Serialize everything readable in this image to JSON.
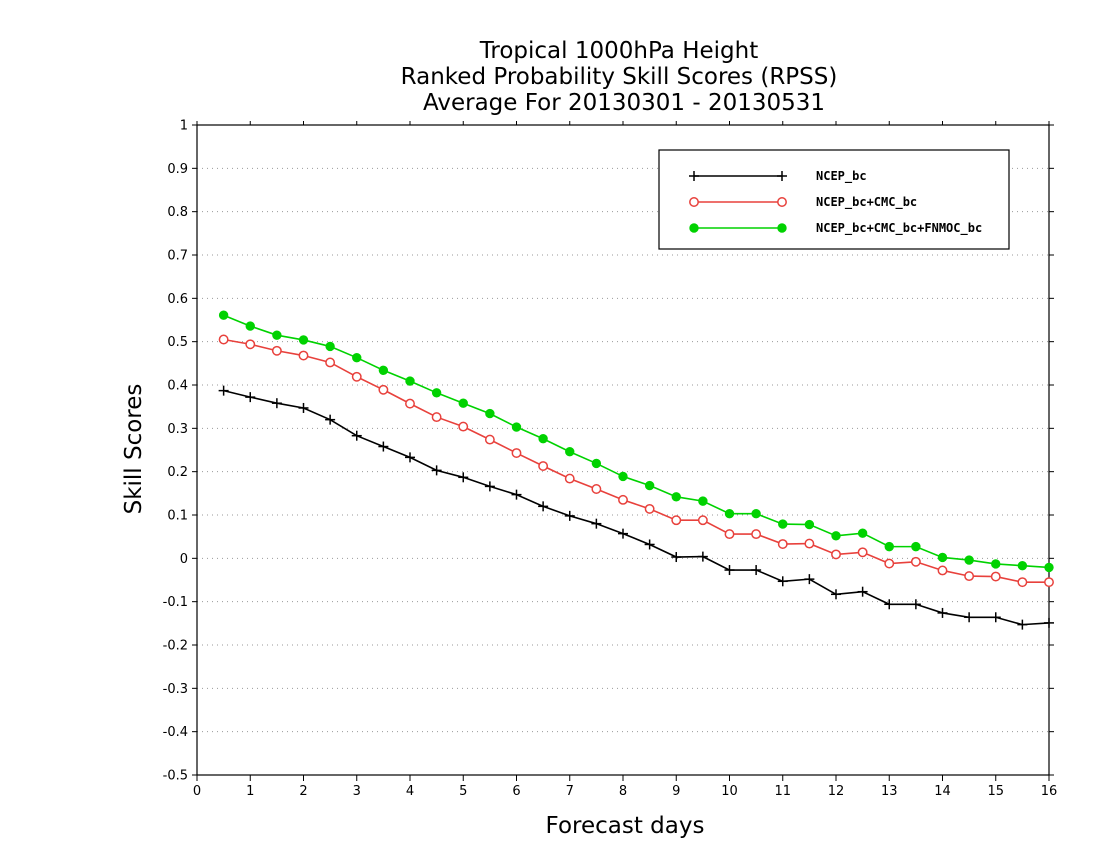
{
  "chart_data": {
    "type": "line",
    "title_lines": [
      "Tropical 1000hPa Height",
      "Ranked Probability Skill Scores (RPSS)",
      "Average For 20130301 - 20130531"
    ],
    "xlabel": "Forecast days",
    "ylabel": "Skill Scores",
    "xlim": [
      0,
      16
    ],
    "ylim": [
      -0.5,
      1
    ],
    "x_ticks": [
      0,
      1,
      2,
      3,
      4,
      5,
      6,
      7,
      8,
      9,
      10,
      11,
      12,
      13,
      14,
      15,
      16
    ],
    "x_tick_labels": [
      "0",
      "1",
      "2",
      "3",
      "4",
      "5",
      "6",
      "7",
      "8",
      "9",
      "10",
      "11",
      "12",
      "13",
      "14",
      "15",
      "16"
    ],
    "y_ticks": [
      -0.5,
      -0.4,
      -0.3,
      -0.2,
      -0.1,
      0,
      0.1,
      0.2,
      0.3,
      0.4,
      0.5,
      0.6,
      0.7,
      0.8,
      0.9,
      1
    ],
    "y_tick_labels": [
      "-0.5",
      "-0.4",
      "-0.3",
      "-0.2",
      "-0.1",
      "0",
      "0.1",
      "0.2",
      "0.3",
      "0.4",
      "0.5",
      "0.6",
      "0.7",
      "0.8",
      "0.9",
      "1"
    ],
    "grid": true,
    "legend_position": "top-right",
    "x": [
      0.5,
      1,
      1.5,
      2,
      2.5,
      3,
      3.5,
      4,
      4.5,
      5,
      5.5,
      6,
      6.5,
      7,
      7.5,
      8,
      8.5,
      9,
      9.5,
      10,
      10.5,
      11,
      11.5,
      12,
      12.5,
      13,
      13.5,
      14,
      14.5,
      15,
      15.5,
      16
    ],
    "series": [
      {
        "name": "NCEP_bc",
        "color": "#000000",
        "marker": "plus",
        "values": [
          0.387,
          0.372,
          0.358,
          0.347,
          0.32,
          0.283,
          0.258,
          0.233,
          0.203,
          0.187,
          0.166,
          0.147,
          0.12,
          0.098,
          0.08,
          0.057,
          0.032,
          0.003,
          0.004,
          -0.027,
          -0.027,
          -0.053,
          -0.048,
          -0.083,
          -0.077,
          -0.106,
          -0.106,
          -0.126,
          -0.136,
          -0.136,
          -0.153,
          -0.149
        ]
      },
      {
        "name": "NCEP_bc+CMC_bc",
        "color": "#e8413c",
        "marker": "open-circle",
        "values": [
          0.505,
          0.494,
          0.479,
          0.468,
          0.452,
          0.419,
          0.389,
          0.357,
          0.326,
          0.304,
          0.274,
          0.243,
          0.213,
          0.184,
          0.16,
          0.135,
          0.114,
          0.088,
          0.088,
          0.056,
          0.056,
          0.033,
          0.034,
          0.009,
          0.014,
          -0.012,
          -0.008,
          -0.028,
          -0.041,
          -0.042,
          -0.055,
          -0.055
        ]
      },
      {
        "name": "NCEP_bc+CMC_bc+FNMOC_bc",
        "color": "#00d200",
        "marker": "filled-circle",
        "values": [
          0.561,
          0.536,
          0.515,
          0.504,
          0.489,
          0.463,
          0.434,
          0.409,
          0.382,
          0.358,
          0.334,
          0.303,
          0.276,
          0.246,
          0.219,
          0.189,
          0.168,
          0.142,
          0.132,
          0.103,
          0.103,
          0.079,
          0.078,
          0.052,
          0.058,
          0.027,
          0.027,
          0.002,
          -0.004,
          -0.013,
          -0.017,
          -0.021
        ]
      }
    ]
  }
}
